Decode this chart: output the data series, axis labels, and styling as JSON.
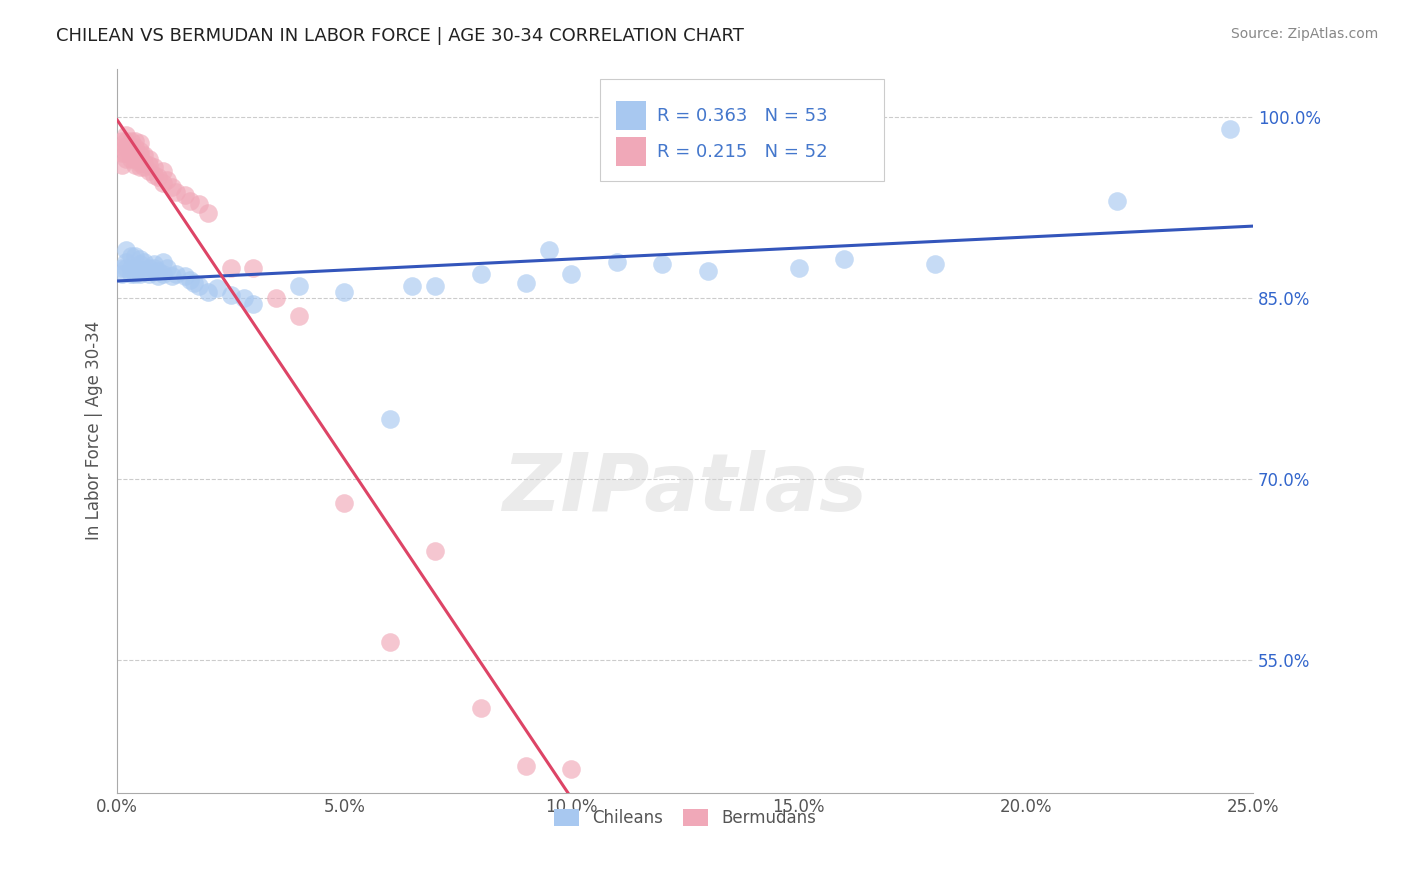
{
  "title": "CHILEAN VS BERMUDAN IN LABOR FORCE | AGE 30-34 CORRELATION CHART",
  "source_text": "Source: ZipAtlas.com",
  "ylabel": "In Labor Force | Age 30-34",
  "xlim": [
    0.0,
    0.25
  ],
  "ylim": [
    0.44,
    1.04
  ],
  "xtick_labels": [
    "0.0%",
    "5.0%",
    "10.0%",
    "15.0%",
    "20.0%",
    "25.0%"
  ],
  "xtick_vals": [
    0.0,
    0.05,
    0.1,
    0.15,
    0.2,
    0.25
  ],
  "ytick_labels": [
    "55.0%",
    "70.0%",
    "85.0%",
    "100.0%"
  ],
  "ytick_vals": [
    0.55,
    0.7,
    0.85,
    1.0
  ],
  "grid_color": "#cccccc",
  "background_color": "#ffffff",
  "axis_label_color": "#555555",
  "tick_color": "#555555",
  "legend_r_chileans": "R = 0.363",
  "legend_n_chileans": "N = 53",
  "legend_r_bermudans": "R = 0.215",
  "legend_n_bermudans": "N = 52",
  "legend_text_color": "#4477cc",
  "watermark": "ZIPatlas",
  "chileans_color": "#a8c8f0",
  "bermudans_color": "#f0a8b8",
  "chileans_line_color": "#3355bb",
  "bermudans_line_color": "#dd4466",
  "chileans_x": [
    0.001,
    0.001,
    0.002,
    0.002,
    0.002,
    0.003,
    0.003,
    0.003,
    0.004,
    0.004,
    0.004,
    0.005,
    0.005,
    0.005,
    0.006,
    0.006,
    0.007,
    0.007,
    0.008,
    0.008,
    0.009,
    0.009,
    0.01,
    0.01,
    0.011,
    0.012,
    0.013,
    0.015,
    0.016,
    0.017,
    0.018,
    0.02,
    0.022,
    0.025,
    0.028,
    0.03,
    0.04,
    0.05,
    0.06,
    0.065,
    0.07,
    0.08,
    0.09,
    0.095,
    0.1,
    0.11,
    0.12,
    0.13,
    0.15,
    0.16,
    0.18,
    0.22,
    0.245
  ],
  "chileans_y": [
    0.87,
    0.875,
    0.875,
    0.88,
    0.89,
    0.875,
    0.87,
    0.885,
    0.87,
    0.875,
    0.885,
    0.87,
    0.878,
    0.882,
    0.873,
    0.88,
    0.875,
    0.87,
    0.875,
    0.878,
    0.872,
    0.868,
    0.87,
    0.88,
    0.875,
    0.868,
    0.87,
    0.868,
    0.865,
    0.862,
    0.86,
    0.855,
    0.858,
    0.852,
    0.85,
    0.845,
    0.86,
    0.855,
    0.75,
    0.86,
    0.86,
    0.87,
    0.862,
    0.89,
    0.87,
    0.88,
    0.878,
    0.872,
    0.875,
    0.882,
    0.878,
    0.93,
    0.99
  ],
  "bermudans_x": [
    0.001,
    0.001,
    0.001,
    0.001,
    0.002,
    0.002,
    0.002,
    0.002,
    0.002,
    0.003,
    0.003,
    0.003,
    0.003,
    0.003,
    0.004,
    0.004,
    0.004,
    0.004,
    0.004,
    0.005,
    0.005,
    0.005,
    0.005,
    0.005,
    0.006,
    0.006,
    0.006,
    0.007,
    0.007,
    0.007,
    0.008,
    0.008,
    0.009,
    0.01,
    0.01,
    0.011,
    0.012,
    0.013,
    0.015,
    0.016,
    0.018,
    0.02,
    0.025,
    0.03,
    0.035,
    0.04,
    0.05,
    0.06,
    0.07,
    0.08,
    0.09,
    0.1
  ],
  "bermudans_y": [
    0.96,
    0.97,
    0.975,
    0.98,
    0.965,
    0.97,
    0.975,
    0.98,
    0.985,
    0.965,
    0.968,
    0.97,
    0.975,
    0.98,
    0.96,
    0.965,
    0.97,
    0.975,
    0.98,
    0.958,
    0.962,
    0.968,
    0.972,
    0.978,
    0.958,
    0.962,
    0.968,
    0.955,
    0.96,
    0.965,
    0.952,
    0.958,
    0.95,
    0.945,
    0.955,
    0.948,
    0.942,
    0.938,
    0.935,
    0.93,
    0.928,
    0.92,
    0.875,
    0.875,
    0.85,
    0.835,
    0.68,
    0.565,
    0.64,
    0.51,
    0.462,
    0.46
  ]
}
